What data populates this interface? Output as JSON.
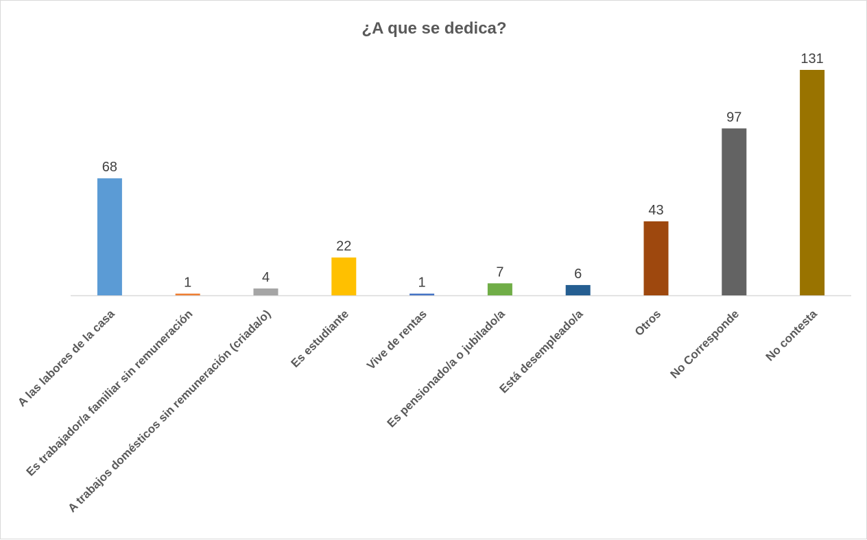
{
  "chart_data": {
    "type": "bar",
    "title": "¿A que se dedica?",
    "xlabel": "",
    "ylabel": "",
    "categories": [
      "A las labores de la casa",
      "Es trabajador/a familiar sin remuneración",
      "A trabajos domésticos sin remuneración (criada/o)",
      "Es estudiante",
      "Vive de rentas",
      "Es pensionado/a o jubilado/a",
      "Está desempleado/a",
      "Otros",
      "No Corresponde",
      "No contesta"
    ],
    "values": [
      68,
      1,
      4,
      22,
      1,
      7,
      6,
      43,
      97,
      131
    ],
    "colors": [
      "#5b9bd5",
      "#ed7d31",
      "#a5a5a5",
      "#ffc000",
      "#4472c4",
      "#70ad47",
      "#255e91",
      "#9e480e",
      "#636363",
      "#997300"
    ],
    "ylim": [
      0,
      131
    ],
    "grid": false,
    "legend": "none",
    "data_labels": true
  }
}
